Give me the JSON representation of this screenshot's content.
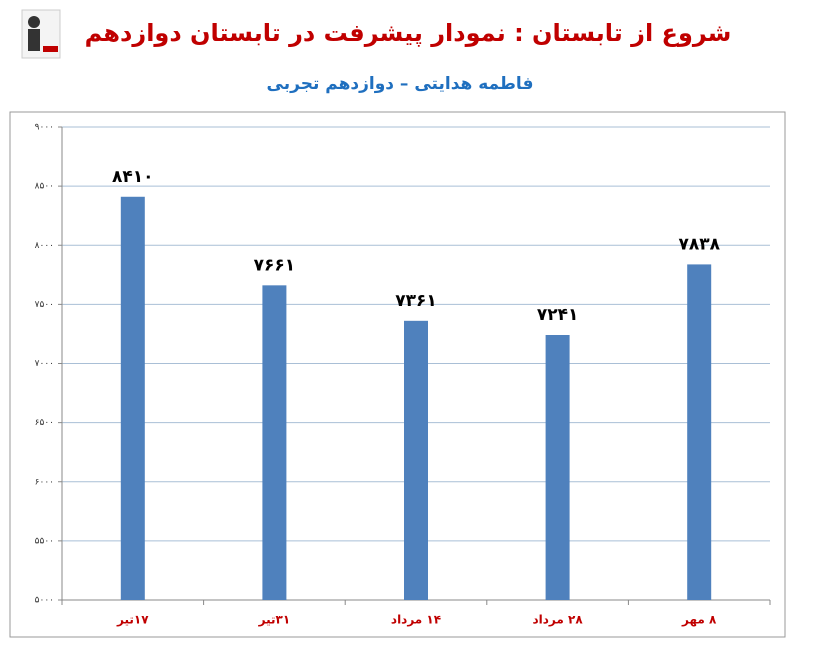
{
  "chart_data": {
    "type": "bar",
    "title": "شروع از تابستان : نمودار پیشرفت در تابستان دوازدهم",
    "subtitle": "فاطمه هدایتی – دوازدهم تجربی",
    "categories": [
      "۱۷تیر",
      "۳۱تیر",
      "۱۴ مرداد",
      "۲۸ مرداد",
      "۸ مهر"
    ],
    "values": [
      8410,
      7661,
      7361,
      7241,
      7838
    ],
    "value_labels": [
      "۸۴۱۰",
      "۷۶۶۱",
      "۷۳۶۱",
      "۷۲۴۱",
      "۷۸۳۸"
    ],
    "color": "#4f81bd",
    "ylim": [
      5000,
      9000
    ],
    "yticks": [
      {
        "value": 5000,
        "label": "۵۰۰۰"
      },
      {
        "value": 5500,
        "label": "۵۵۰۰"
      },
      {
        "value": 6000,
        "label": "۶۰۰۰"
      },
      {
        "value": 6500,
        "label": "۶۵۰۰"
      },
      {
        "value": 7000,
        "label": "۷۰۰۰"
      },
      {
        "value": 7500,
        "label": "۷۵۰۰"
      },
      {
        "value": 8000,
        "label": "۸۰۰۰"
      },
      {
        "value": 8500,
        "label": "۸۵۰۰"
      },
      {
        "value": 9000,
        "label": "۹۰۰۰"
      }
    ],
    "grid": true
  }
}
